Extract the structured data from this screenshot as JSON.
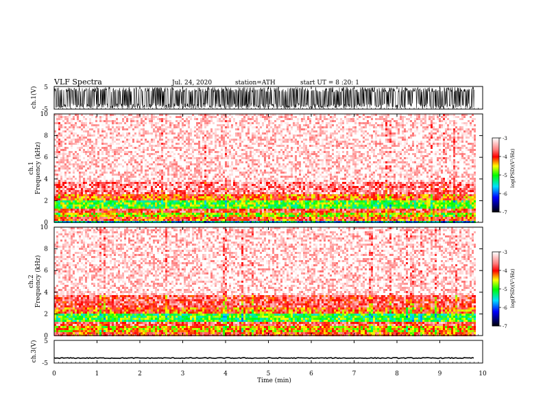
{
  "header": {
    "title": "VLF  Spectra",
    "date": "Jul.  24,  2020",
    "station": "station=ATH",
    "start": "start  UT  =    8  :20: 1"
  },
  "chart_data": [
    {
      "type": "line",
      "title": "",
      "ylabel": "ch.1(V)",
      "ylim": [
        -5,
        5
      ],
      "yticks": [
        "5",
        "-5"
      ],
      "description_values": "dense waveform filling approximately -4.5 to 4.5 V",
      "x_range_min": [
        0,
        9.8
      ]
    },
    {
      "type": "heatmap",
      "ylabel_channel": "ch.1",
      "ylabel": "Frequency  (kHz)",
      "ylim": [
        0,
        10
      ],
      "yticks": [
        "0",
        "2",
        "4",
        "6",
        "8",
        "10"
      ],
      "bands_khz": [
        {
          "from": 0,
          "to": 0.2,
          "level": -5.5
        },
        {
          "from": 0.2,
          "to": 0.6,
          "level": -4.0
        },
        {
          "from": 0.6,
          "to": 0.9,
          "level": -4.6
        },
        {
          "from": 0.9,
          "to": 1.3,
          "level": -3.8
        },
        {
          "from": 1.3,
          "to": 2.0,
          "level": -4.9
        },
        {
          "from": 2.0,
          "to": 2.6,
          "level": -4.1
        },
        {
          "from": 2.6,
          "to": 3.8,
          "level": -3.5
        },
        {
          "from": 3.8,
          "to": 10,
          "level": -3.1
        }
      ],
      "colorbar": {
        "label": "log(PSD)(V²/Hz)",
        "ticks": [
          "-3",
          "-4",
          "-5",
          "-6",
          "-7"
        ],
        "range": [
          -7,
          -3
        ]
      }
    },
    {
      "type": "heatmap",
      "ylabel_channel": "ch.2",
      "ylabel": "Frequency  (kHz)",
      "ylim": [
        0,
        10
      ],
      "yticks": [
        "0",
        "2",
        "4",
        "6",
        "8",
        "10"
      ],
      "bands_khz": [
        {
          "from": 0,
          "to": 0.3,
          "level": -4.0
        },
        {
          "from": 0.3,
          "to": 0.9,
          "level": -4.4
        },
        {
          "from": 0.9,
          "to": 1.2,
          "level": -3.7
        },
        {
          "from": 1.2,
          "to": 2.0,
          "level": -5.0
        },
        {
          "from": 2.0,
          "to": 2.6,
          "level": -4.1
        },
        {
          "from": 2.6,
          "to": 3.8,
          "level": -3.7
        },
        {
          "from": 3.8,
          "to": 10,
          "level": -3.1
        }
      ],
      "colorbar": {
        "label": "log(PSD)(V²/Hz)",
        "ticks": [
          "-3",
          "-4",
          "-5",
          "-6",
          "-7"
        ],
        "range": [
          -7,
          -3
        ]
      }
    },
    {
      "type": "line",
      "ylabel": "ch.3(V)",
      "ylim": [
        -5,
        5
      ],
      "yticks": [
        "5",
        "-5"
      ],
      "level_v": -2.8
    }
  ],
  "xaxis": {
    "label": "Time  (min)",
    "ticks": [
      "0",
      "1",
      "2",
      "3",
      "4",
      "5",
      "6",
      "7",
      "8",
      "9",
      "10"
    ],
    "range": [
      0,
      10
    ],
    "data_end": 9.8
  },
  "colors": {
    "white": "#ffffff",
    "red": "#ff0000",
    "yellow": "#ffff00",
    "green": "#00ff00",
    "cyan": "#00e0ff",
    "blue": "#0000ff",
    "black": "#000000"
  }
}
